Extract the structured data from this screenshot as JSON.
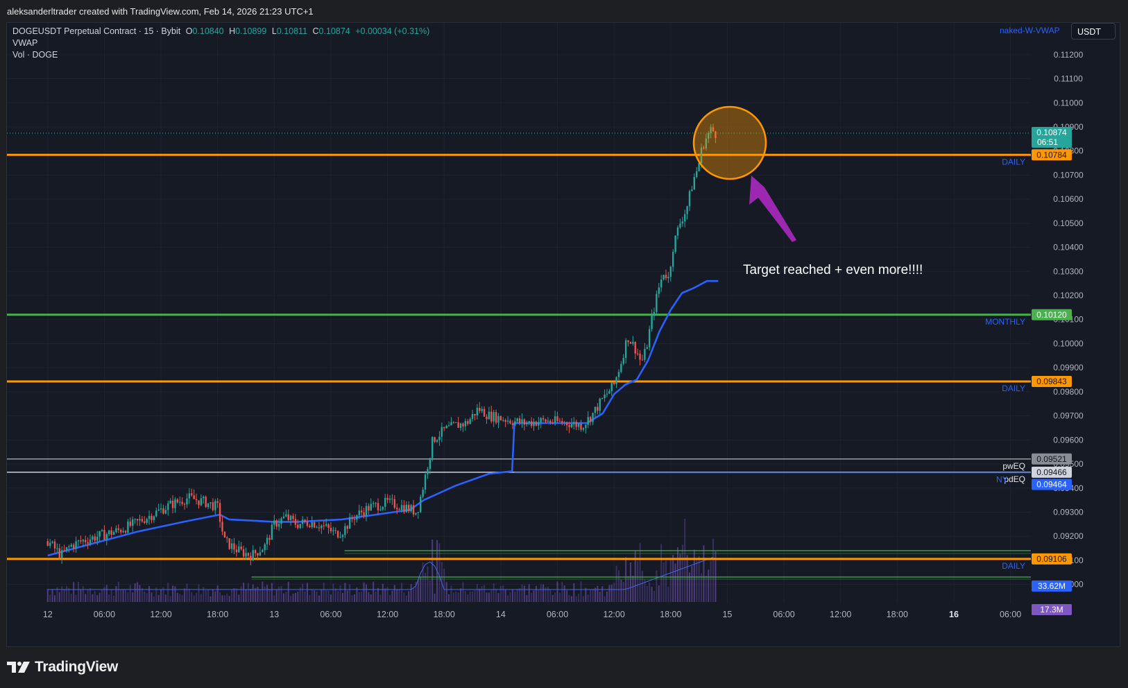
{
  "header": {
    "attribution": "aleksanderltrader created with TradingView.com, Feb 14, 2026 21:23 UTC+1"
  },
  "legend": {
    "symbol": "DOGEUSDT Perpetual Contract · 15 · Bybit",
    "o_label": "O",
    "o": "0.10840",
    "h_label": "H",
    "h": "0.10899",
    "l_label": "L",
    "l": "0.10811",
    "c_label": "C",
    "c": "0.10874",
    "change": "+0.00034 (+0.31%)",
    "indicator1": "VWAP",
    "indicator2": "Vol · DOGE"
  },
  "indicator_name": "naked-W-VWAP",
  "currency_button": "USDT",
  "annotation_text": "Target reached + even more!!!!",
  "footer": {
    "brand": "TradingView"
  },
  "colors": {
    "bg": "#161a25",
    "up": "#26a69a",
    "down": "#ef5350",
    "vwap": "#2962ff",
    "daily": "#ff9800",
    "monthly": "#4caf50",
    "annot": "#9c27b0"
  },
  "chart_data": {
    "type": "candlestick",
    "symbol": "DOGEUSDT",
    "timeframe": "15",
    "ylim": [
      0.0895,
      0.1126
    ],
    "y_ticks": [
      "0.09000",
      "0.09100",
      "0.09200",
      "0.09300",
      "0.09400",
      "0.09500",
      "0.09600",
      "0.09700",
      "0.09800",
      "0.09900",
      "0.10000",
      "0.10100",
      "0.10200",
      "0.10300",
      "0.10400",
      "0.10500",
      "0.10600",
      "0.10700",
      "0.10800",
      "0.10900",
      "0.11000",
      "0.11100",
      "0.11200"
    ],
    "x_ticks": [
      "12",
      "06:00",
      "12:00",
      "18:00",
      "13",
      "06:00",
      "12:00",
      "18:00",
      "14",
      "06:00",
      "12:00",
      "18:00",
      "15",
      "06:00",
      "12:00",
      "18:00",
      "16",
      "06:00"
    ],
    "last_price": {
      "value": "0.10874",
      "countdown": "06:51"
    },
    "levels": [
      {
        "value": 0.10784,
        "label": "0.10784",
        "tag": "DAILY",
        "color": "#ff9800"
      },
      {
        "value": 0.1012,
        "label": "0.10120",
        "tag": "MONTHLY",
        "color": "#4caf50"
      },
      {
        "value": 0.09843,
        "label": "0.09843",
        "tag": "DAILY",
        "color": "#ff9800"
      },
      {
        "value": 0.09521,
        "label": "0.09521",
        "tag": "pwEQ",
        "color": "#9e9e9e"
      },
      {
        "value": 0.09466,
        "label": "0.09466",
        "tag": "pdEQ",
        "color": "#d1d4dc"
      },
      {
        "value": 0.09106,
        "label": "0.09106",
        "tag": "DAILY",
        "color": "#ff9800"
      }
    ],
    "vwap_label": {
      "value": "0.09464",
      "tag": "NY"
    },
    "volume_labels": [
      "33.62M",
      "17.3M"
    ],
    "price_path": [
      [
        12.0,
        0.0918
      ],
      [
        12.06,
        0.0912
      ],
      [
        12.1,
        0.0916
      ],
      [
        12.15,
        0.0918
      ],
      [
        12.22,
        0.092
      ],
      [
        12.3,
        0.0922
      ],
      [
        12.38,
        0.0925
      ],
      [
        12.46,
        0.0929
      ],
      [
        12.54,
        0.0933
      ],
      [
        12.62,
        0.0936
      ],
      [
        12.7,
        0.0934
      ],
      [
        12.75,
        0.0932
      ],
      [
        12.78,
        0.0918
      ],
      [
        12.84,
        0.0914
      ],
      [
        12.9,
        0.0912
      ],
      [
        12.96,
        0.0916
      ],
      [
        13.0,
        0.0925
      ],
      [
        13.05,
        0.0928
      ],
      [
        13.1,
        0.0925
      ],
      [
        13.16,
        0.0926
      ],
      [
        13.22,
        0.0924
      ],
      [
        13.27,
        0.0921
      ],
      [
        13.3,
        0.0922
      ],
      [
        13.35,
        0.0928
      ],
      [
        13.42,
        0.0932
      ],
      [
        13.5,
        0.0934
      ],
      [
        13.58,
        0.0932
      ],
      [
        13.63,
        0.093
      ],
      [
        13.66,
        0.0942
      ],
      [
        13.7,
        0.096
      ],
      [
        13.75,
        0.0964
      ],
      [
        13.8,
        0.0966
      ],
      [
        13.85,
        0.0967
      ],
      [
        13.9,
        0.0973
      ],
      [
        13.95,
        0.097
      ],
      [
        14.0,
        0.0969
      ],
      [
        14.1,
        0.0967
      ],
      [
        14.2,
        0.0968
      ],
      [
        14.3,
        0.0967
      ],
      [
        14.36,
        0.0966
      ],
      [
        14.4,
        0.097
      ],
      [
        14.45,
        0.0977
      ],
      [
        14.5,
        0.0983
      ],
      [
        14.53,
        0.0992
      ],
      [
        14.56,
        0.1003
      ],
      [
        14.6,
        0.0997
      ],
      [
        14.62,
        0.0992
      ],
      [
        14.64,
        0.0997
      ],
      [
        14.67,
        0.1012
      ],
      [
        14.7,
        0.1024
      ],
      [
        14.72,
        0.103
      ],
      [
        14.74,
        0.1027
      ],
      [
        14.76,
        0.104
      ],
      [
        14.79,
        0.105
      ],
      [
        14.82,
        0.1056
      ],
      [
        14.85,
        0.1068
      ],
      [
        14.87,
        0.1073
      ],
      [
        14.89,
        0.1082
      ],
      [
        14.91,
        0.1086
      ],
      [
        14.93,
        0.1089
      ],
      [
        14.95,
        0.1087
      ]
    ],
    "vwap_path": [
      [
        12.0,
        0.0912
      ],
      [
        12.2,
        0.0917
      ],
      [
        12.4,
        0.0922
      ],
      [
        12.6,
        0.0926
      ],
      [
        12.76,
        0.0929
      ],
      [
        12.8,
        0.0927
      ],
      [
        13.0,
        0.0926
      ],
      [
        13.1,
        0.0926
      ],
      [
        13.3,
        0.0927
      ],
      [
        13.45,
        0.0929
      ],
      [
        13.6,
        0.0931
      ],
      [
        13.66,
        0.0935
      ],
      [
        13.8,
        0.0941
      ],
      [
        13.95,
        0.0946
      ],
      [
        14.05,
        0.0947
      ],
      [
        14.06,
        0.0967
      ],
      [
        14.3,
        0.0967
      ],
      [
        14.38,
        0.0967
      ],
      [
        14.45,
        0.0971
      ],
      [
        14.5,
        0.0979
      ],
      [
        14.55,
        0.0983
      ],
      [
        14.6,
        0.0985
      ],
      [
        14.65,
        0.0993
      ],
      [
        14.7,
        0.1005
      ],
      [
        14.75,
        0.1014
      ],
      [
        14.8,
        0.1021
      ],
      [
        14.85,
        0.1023
      ],
      [
        14.91,
        0.1026
      ],
      [
        14.96,
        0.1026
      ]
    ]
  }
}
